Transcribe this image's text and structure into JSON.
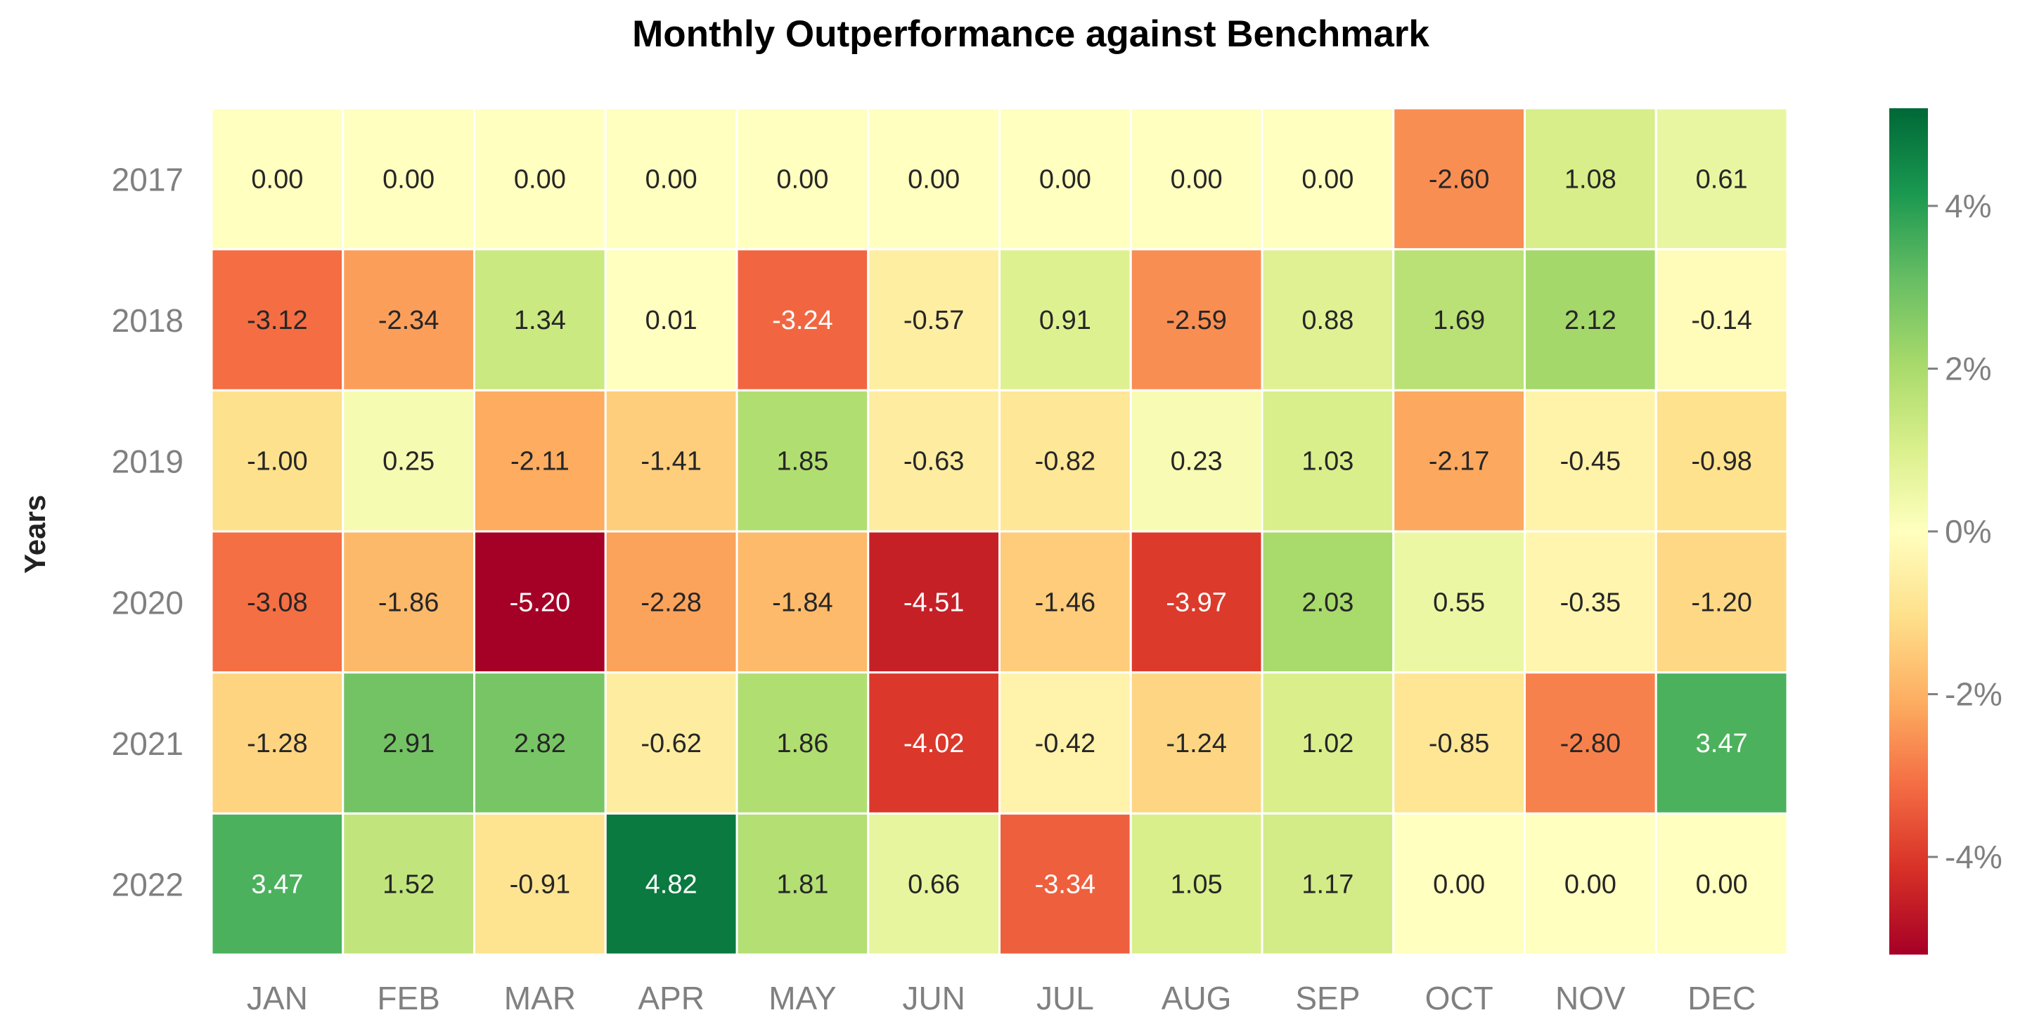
{
  "chart_data": {
    "type": "heatmap",
    "title": "Monthly Outperformance against Benchmark",
    "ylabel": "Years",
    "xlabel": "",
    "x_categories": [
      "JAN",
      "FEB",
      "MAR",
      "APR",
      "MAY",
      "JUN",
      "JUL",
      "AUG",
      "SEP",
      "OCT",
      "NOV",
      "DEC"
    ],
    "y_categories": [
      "2017",
      "2018",
      "2019",
      "2020",
      "2021",
      "2022"
    ],
    "values": [
      [
        0.0,
        0.0,
        0.0,
        0.0,
        0.0,
        0.0,
        0.0,
        0.0,
        0.0,
        -2.6,
        1.08,
        0.61
      ],
      [
        -3.12,
        -2.34,
        1.34,
        0.01,
        -3.24,
        -0.57,
        0.91,
        -2.59,
        0.88,
        1.69,
        2.12,
        -0.14
      ],
      [
        -1.0,
        0.25,
        -2.11,
        -1.41,
        1.85,
        -0.63,
        -0.82,
        0.23,
        1.03,
        -2.17,
        -0.45,
        -0.98
      ],
      [
        -3.08,
        -1.86,
        -5.2,
        -2.28,
        -1.84,
        -4.51,
        -1.46,
        -3.97,
        2.03,
        0.55,
        -0.35,
        -1.2
      ],
      [
        -1.28,
        2.91,
        2.82,
        -0.62,
        1.86,
        -4.02,
        -0.42,
        -1.24,
        1.02,
        -0.85,
        -2.8,
        3.47
      ],
      [
        3.47,
        1.52,
        -0.91,
        4.82,
        1.81,
        0.66,
        -3.34,
        1.05,
        1.17,
        0.0,
        0.0,
        0.0
      ]
    ],
    "value_format": "0.00",
    "colormap": "RdYlGn",
    "color_range": [
      -5.2,
      5.2
    ],
    "colorbar": {
      "ticks": [
        4,
        2,
        0,
        -2,
        -4
      ],
      "tick_labels": [
        "4%",
        "2%",
        "0%",
        "-2%",
        "-4%"
      ]
    },
    "grid": false,
    "cell_border_color": "#ffffff"
  }
}
